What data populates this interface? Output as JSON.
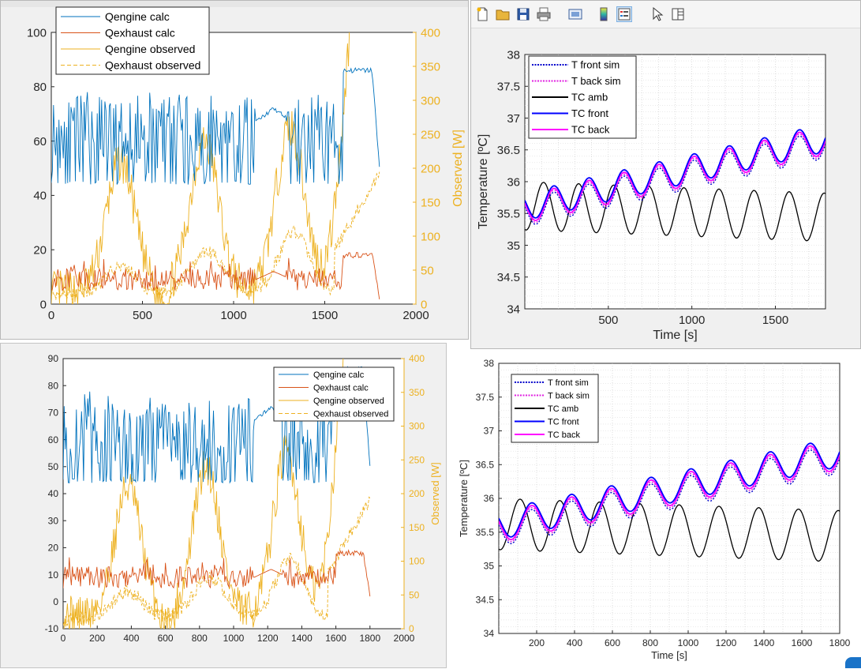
{
  "colors": {
    "calc_engine": "#0072BD",
    "calc_exhaust": "#D95319",
    "observed": "#EDB120",
    "sim_front": "#0000CC",
    "sim_back": "#E020E0",
    "tc_amb": "#000000",
    "tc_front": "#0000FF",
    "tc_back": "#FF00FF"
  },
  "toolbar": {
    "icons": [
      "new-file-icon",
      "open-folder-icon",
      "save-icon",
      "print-icon",
      "print-preview-icon",
      "colorbar-icon",
      "legend-icon",
      "pointer-icon",
      "property-inspector-icon"
    ]
  },
  "chart_data": [
    {
      "id": "heat-top",
      "type": "line",
      "xlim": [
        0,
        2000
      ],
      "ylim": [
        0,
        100
      ],
      "y2lim": [
        0,
        400
      ],
      "xticks": [
        "0",
        "500",
        "1000",
        "1500",
        "2000"
      ],
      "yticks": [
        "0",
        "20",
        "40",
        "60",
        "80",
        "100"
      ],
      "y2ticks": [
        "0",
        "50",
        "100",
        "150",
        "200",
        "250",
        "300",
        "350",
        "400"
      ],
      "y2label": "Observed [W]",
      "legend": [
        "Qengine calc",
        "Qexhaust calc",
        "Qengine observed",
        "Qexhaust observed"
      ],
      "legend_placement": "top-left",
      "grid": false
    },
    {
      "id": "temp-top",
      "type": "line",
      "xlim": [
        0,
        1800
      ],
      "ylim": [
        34,
        38
      ],
      "xticks": [
        "500",
        "1000",
        "1500"
      ],
      "yticks": [
        "34",
        "34.5",
        "35",
        "35.5",
        "36",
        "36.5",
        "37",
        "37.5",
        "38"
      ],
      "xlabel": "Time [s]",
      "ylabel": "Temperature [ºC]",
      "legend": [
        "T front sim",
        "T back sim",
        "TC amb",
        "TC front",
        "TC back"
      ],
      "legend_placement": "top-left",
      "grid": true
    },
    {
      "id": "heat-bottom",
      "type": "line",
      "xlim": [
        0,
        2000
      ],
      "ylim": [
        -10,
        90
      ],
      "y2lim": [
        0,
        400
      ],
      "xticks": [
        "0",
        "200",
        "400",
        "600",
        "800",
        "1000",
        "1200",
        "1400",
        "1600",
        "1800",
        "2000"
      ],
      "yticks": [
        "-10",
        "0",
        "10",
        "20",
        "30",
        "40",
        "50",
        "60",
        "70",
        "80",
        "90"
      ],
      "y2ticks": [
        "0",
        "50",
        "100",
        "150",
        "200",
        "250",
        "300",
        "350",
        "400"
      ],
      "y2label": "Observed [W]",
      "legend": [
        "Qengine calc",
        "Qexhaust calc",
        "Qengine observed",
        "Qexhaust observed"
      ],
      "legend_placement": "top-right",
      "grid": false
    },
    {
      "id": "temp-bottom",
      "type": "line",
      "xlim": [
        0,
        1800
      ],
      "ylim": [
        34,
        38
      ],
      "xticks": [
        "200",
        "400",
        "600",
        "800",
        "1000",
        "1200",
        "1400",
        "1600",
        "1800"
      ],
      "yticks": [
        "34",
        "34.5",
        "35",
        "35.5",
        "36",
        "36.5",
        "37",
        "37.5",
        "38"
      ],
      "xlabel": "Time [s]",
      "ylabel": "Temperature [ºC]",
      "legend": [
        "T front sim",
        "T back sim",
        "TC amb",
        "TC front",
        "TC back"
      ],
      "legend_placement": "top-left",
      "grid": true
    }
  ]
}
